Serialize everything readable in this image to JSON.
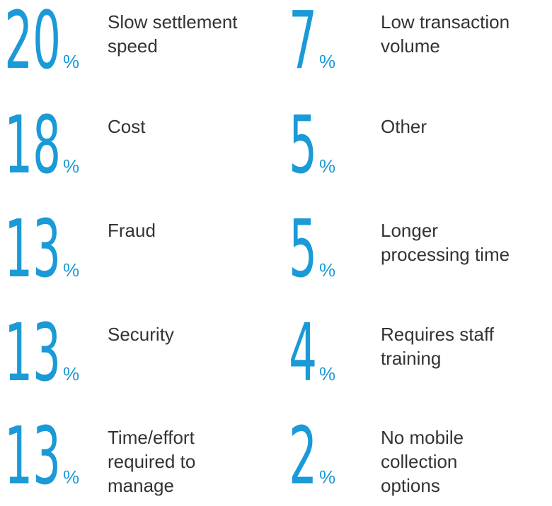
{
  "unit": "%",
  "columns": [
    [
      {
        "value": 20,
        "label": [
          "Slow settlement",
          "speed"
        ]
      },
      {
        "value": 18,
        "label": [
          "Cost"
        ]
      },
      {
        "value": 13,
        "label": [
          "Fraud"
        ]
      },
      {
        "value": 13,
        "label": [
          "Security"
        ]
      },
      {
        "value": 13,
        "label": [
          "Time/effort",
          "required to",
          "manage"
        ]
      }
    ],
    [
      {
        "value": 7,
        "label": [
          "Low transaction",
          "volume"
        ]
      },
      {
        "value": 5,
        "label": [
          "Other"
        ]
      },
      {
        "value": 5,
        "label": [
          "Longer",
          "processing time"
        ]
      },
      {
        "value": 4,
        "label": [
          "Requires staff",
          "training"
        ]
      },
      {
        "value": 2,
        "label": [
          "No mobile",
          "collection",
          "options"
        ]
      }
    ]
  ]
}
